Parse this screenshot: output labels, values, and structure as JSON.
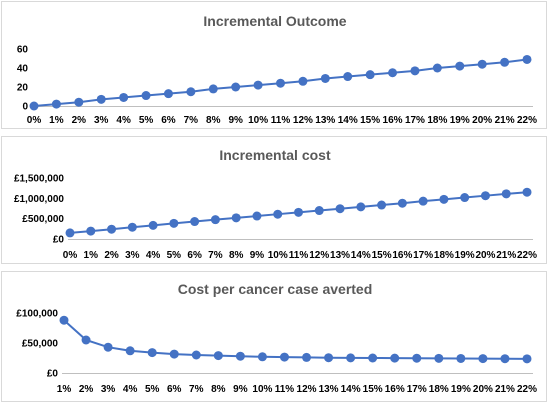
{
  "chart_data": [
    {
      "type": "line",
      "title": "Incremental Outcome",
      "categories": [
        "0%",
        "1%",
        "2%",
        "3%",
        "4%",
        "5%",
        "6%",
        "7%",
        "8%",
        "9%",
        "10%",
        "11%",
        "12%",
        "13%",
        "14%",
        "15%",
        "16%",
        "17%",
        "18%",
        "19%",
        "20%",
        "21%",
        "22%"
      ],
      "values": [
        0,
        2,
        4,
        7,
        9,
        11,
        13,
        15,
        18,
        20,
        22,
        24,
        26,
        29,
        31,
        33,
        35,
        37,
        40,
        42,
        44,
        46,
        49
      ],
      "ylim": [
        0,
        60
      ],
      "yticks": [
        0,
        20,
        40,
        60
      ],
      "ytick_labels": [
        "0",
        "20",
        "40",
        "60"
      ],
      "series_color": "#4472c4",
      "grid": false,
      "legend": "none"
    },
    {
      "type": "line",
      "title": "Incremental cost",
      "categories": [
        "0%",
        "1%",
        "2%",
        "3%",
        "4%",
        "5%",
        "6%",
        "7%",
        "8%",
        "9%",
        "10%",
        "11%",
        "12%",
        "13%",
        "14%",
        "15%",
        "16%",
        "17%",
        "18%",
        "19%",
        "20%",
        "21%",
        "22%"
      ],
      "values": [
        150000,
        195000,
        240000,
        290000,
        335000,
        385000,
        430000,
        475000,
        520000,
        565000,
        610000,
        655000,
        700000,
        745000,
        790000,
        835000,
        880000,
        930000,
        975000,
        1020000,
        1065000,
        1110000,
        1150000
      ],
      "ylim": [
        0,
        1500000
      ],
      "yticks": [
        0,
        500000,
        1000000,
        1500000
      ],
      "ytick_labels": [
        "£0",
        "£500,000",
        "£1,000,000",
        "£1,500,000"
      ],
      "series_color": "#4472c4",
      "grid": false,
      "legend": "none"
    },
    {
      "type": "line",
      "title": "Cost per cancer case averted",
      "categories": [
        "1%",
        "2%",
        "3%",
        "4%",
        "5%",
        "6%",
        "7%",
        "8%",
        "9%",
        "10%",
        "11%",
        "12%",
        "13%",
        "14%",
        "15%",
        "16%",
        "17%",
        "18%",
        "19%",
        "20%",
        "21%",
        "22%"
      ],
      "values": [
        88000,
        55000,
        43000,
        37000,
        34000,
        31500,
        30000,
        29000,
        28000,
        27000,
        26500,
        26000,
        25500,
        25200,
        25000,
        24800,
        24600,
        24400,
        24200,
        24000,
        23800,
        23600
      ],
      "ylim": [
        0,
        100000
      ],
      "yticks": [
        0,
        50000,
        100000
      ],
      "ytick_labels": [
        "£0",
        "£50,000",
        "£100,000"
      ],
      "series_color": "#4472c4",
      "grid": false,
      "legend": "none"
    }
  ]
}
